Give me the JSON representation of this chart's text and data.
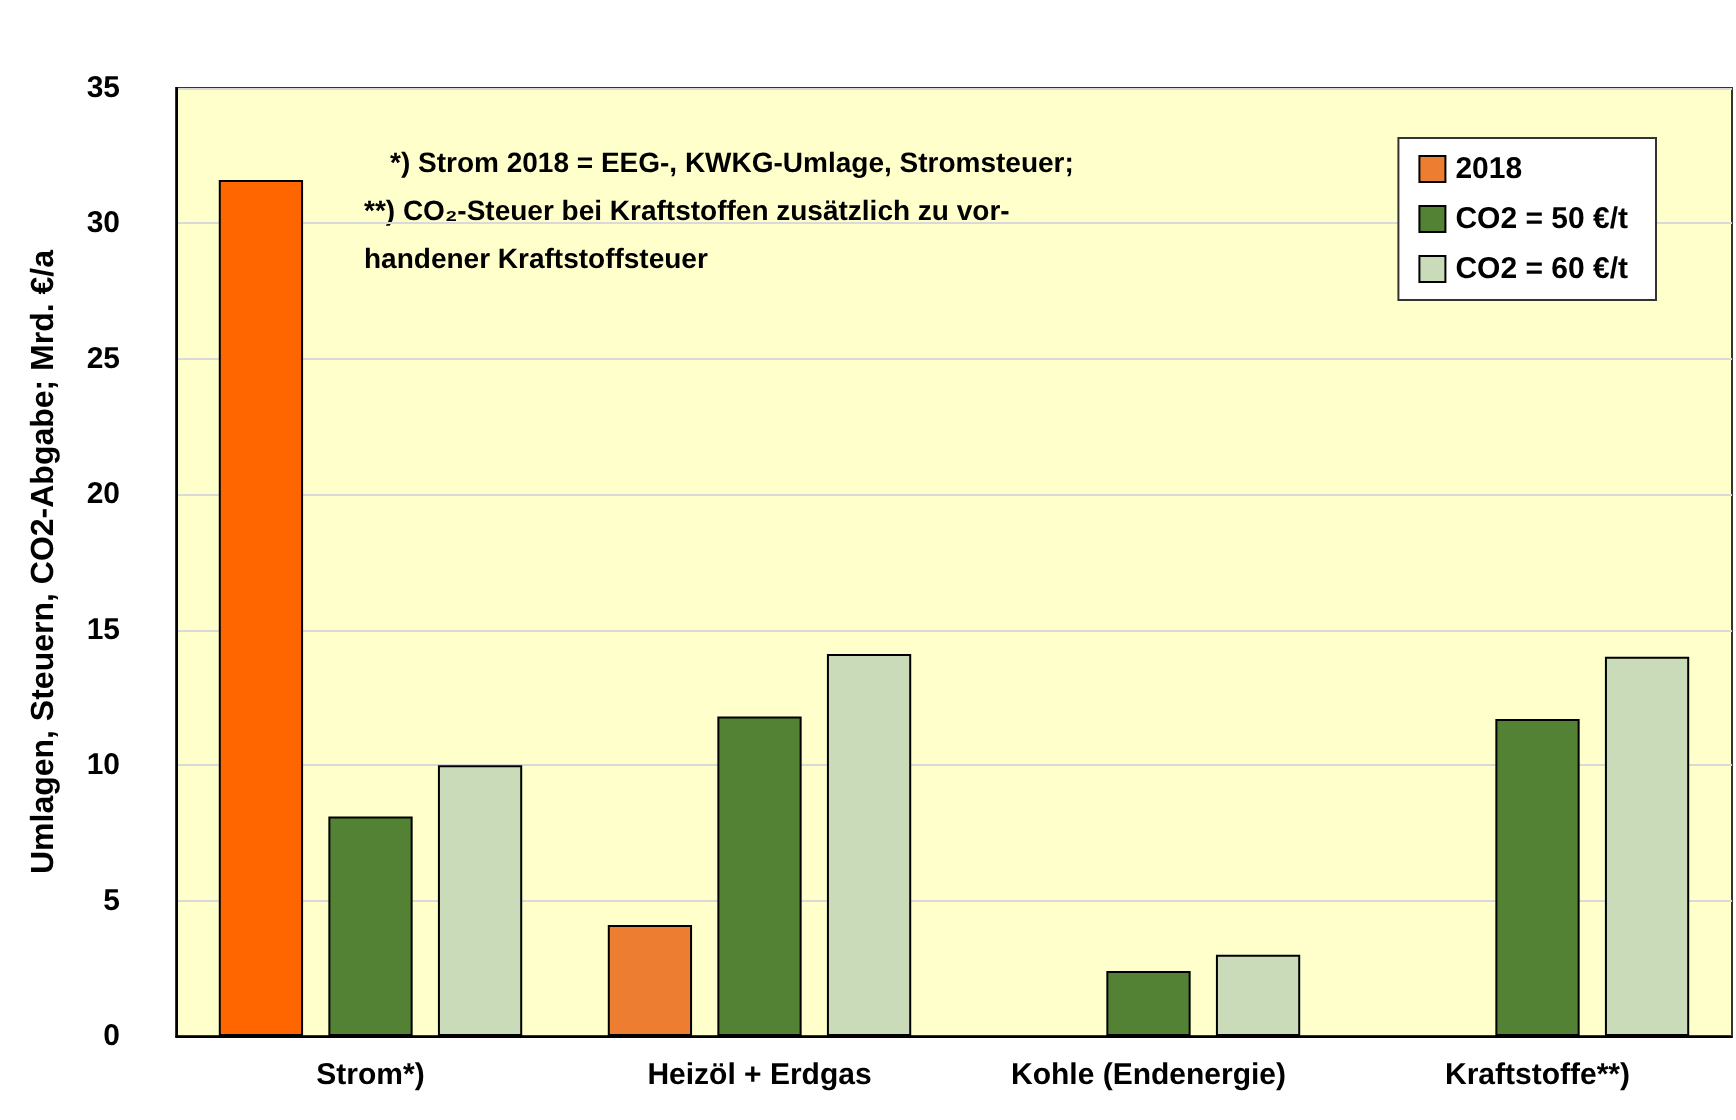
{
  "chart_data": {
    "type": "bar",
    "ylabel": "Umlagen, Steuern, CO2-Abgabe; Mrd. €/a",
    "categories": [
      "Strom*)",
      "Heizöl + Erdgas",
      "Kohle (Endenergie)",
      "Kraftstoffe**)"
    ],
    "series": [
      {
        "name": "2018",
        "color": "#ed7d31",
        "colors": [
          "#ff6600",
          "#ed7d31",
          "#ed7d31",
          "#ed7d31"
        ],
        "values": [
          31.6,
          4.1,
          null,
          null
        ]
      },
      {
        "name": "CO2 = 50 €/t",
        "color": "#548235",
        "values": [
          8.1,
          11.8,
          2.4,
          11.7
        ]
      },
      {
        "name": "CO2 = 60 €/t",
        "color": "#c9dbb9",
        "values": [
          10.0,
          14.1,
          3.0,
          14.0
        ]
      }
    ],
    "ylim": [
      0,
      35
    ],
    "yticks": [
      0,
      5,
      10,
      15,
      20,
      25,
      30,
      35
    ],
    "grid": "y",
    "legend": "top right",
    "annotations": [
      "*) Strom 2018 = EEG-, KWKG-Umlage, Stromsteuer;",
      "**) CO₂-Steuer bei Kraftstoffen zusätzlich zu vor-\nhandener Kraftstoffsteuer"
    ]
  }
}
